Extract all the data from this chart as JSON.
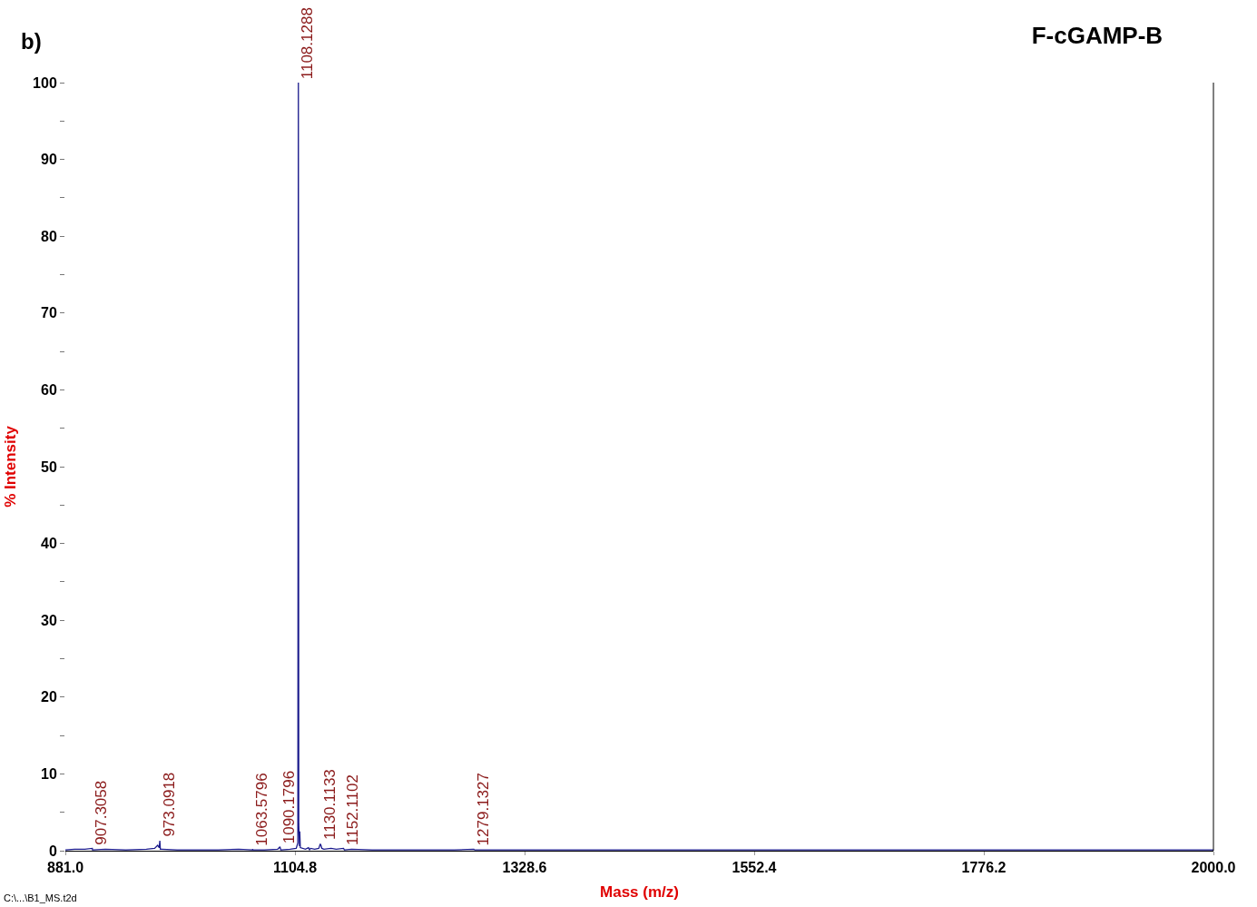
{
  "chart_data": {
    "type": "line",
    "title": "F-cGAMP-B",
    "xlabel": "Mass (m/z)",
    "ylabel": "% Intensity",
    "x": [
      881,
      890,
      900,
      907.3,
      907.5,
      920,
      940,
      960,
      968,
      971,
      972.5,
      973.09,
      973.6,
      975,
      990,
      1010,
      1030,
      1050,
      1063.3,
      1063.58,
      1063.9,
      1075,
      1088,
      1090.18,
      1091,
      1100,
      1106,
      1107.6,
      1107.9,
      1108.13,
      1108.3,
      1108.5,
      1109.2,
      1109.5,
      1110,
      1115,
      1118,
      1119,
      1120,
      1124,
      1128,
      1129.5,
      1130.11,
      1131,
      1133,
      1140,
      1145,
      1152.11,
      1153,
      1160,
      1180,
      1200,
      1230,
      1260,
      1279.13,
      1280,
      1300,
      1400,
      1500,
      1600,
      1700,
      1800,
      1900,
      2000
    ],
    "series": [
      {
        "color": "#1a1a8c",
        "values": [
          0.1,
          0.2,
          0.2,
          0.3,
          0.1,
          0.2,
          0.1,
          0.2,
          0.3,
          0.7,
          0.4,
          1.3,
          0.2,
          0.2,
          0.1,
          0.1,
          0.1,
          0.2,
          0.1,
          0.2,
          0.1,
          0.1,
          0.2,
          0.5,
          0.1,
          0.2,
          0.3,
          1.0,
          60,
          100,
          61,
          3.5,
          0.6,
          2.5,
          0.4,
          0.2,
          0.4,
          0.1,
          0.3,
          0.2,
          0.3,
          0.9,
          0.7,
          0.3,
          0.2,
          0.3,
          0.2,
          0.3,
          0.1,
          0.2,
          0.1,
          0.1,
          0.1,
          0.1,
          0.2,
          0.1,
          0.1,
          0.1,
          0.1,
          0.1,
          0.1,
          0.1,
          0.1,
          0.1
        ]
      }
    ],
    "xlim": [
      881,
      2000
    ],
    "xticks": [
      {
        "value": 881,
        "label": "881.0"
      },
      {
        "value": 1104.8,
        "label": "1104.8"
      },
      {
        "value": 1328.6,
        "label": "1328.6"
      },
      {
        "value": 1552.4,
        "label": "1552.4"
      },
      {
        "value": 1776.2,
        "label": "1776.2"
      },
      {
        "value": 2000,
        "label": "2000.0"
      }
    ],
    "ylim": [
      0,
      100
    ],
    "yticks": [
      0,
      {
        "value": 5,
        "label": null
      },
      10,
      {
        "value": 15,
        "label": null
      },
      20,
      {
        "value": 25,
        "label": null
      },
      30,
      {
        "value": 35,
        "label": null
      },
      40,
      {
        "value": 45,
        "label": null
      },
      50,
      {
        "value": 55,
        "label": null
      },
      60,
      {
        "value": 65,
        "label": null
      },
      70,
      {
        "value": 75,
        "label": null
      },
      80,
      {
        "value": 85,
        "label": null
      },
      90,
      {
        "value": 95,
        "label": null
      },
      100
    ],
    "grid": false,
    "marker": "none",
    "line_style": "solid",
    "annotations": [
      "b)",
      "C:\\...\\B1_MS.t2d",
      {
        "text": "907.3058",
        "x": 907.3058,
        "y": 0.3
      },
      {
        "text": "973.0918",
        "x": 973.0918,
        "y": 1.3
      },
      {
        "text": "1063.5796",
        "x": 1063.5796,
        "y": 0.2
      },
      {
        "text": "1090.1796",
        "x": 1090.1796,
        "y": 0.5
      },
      {
        "text": "1108.1288",
        "x": 1108.1288,
        "y": 100
      },
      {
        "text": "1130.1133",
        "x": 1130.1133,
        "y": 0.9
      },
      {
        "text": "1152.1102",
        "x": 1152.1102,
        "y": 0.3
      },
      {
        "text": "1279.1327",
        "x": 1279.1327,
        "y": 0.2
      }
    ]
  }
}
